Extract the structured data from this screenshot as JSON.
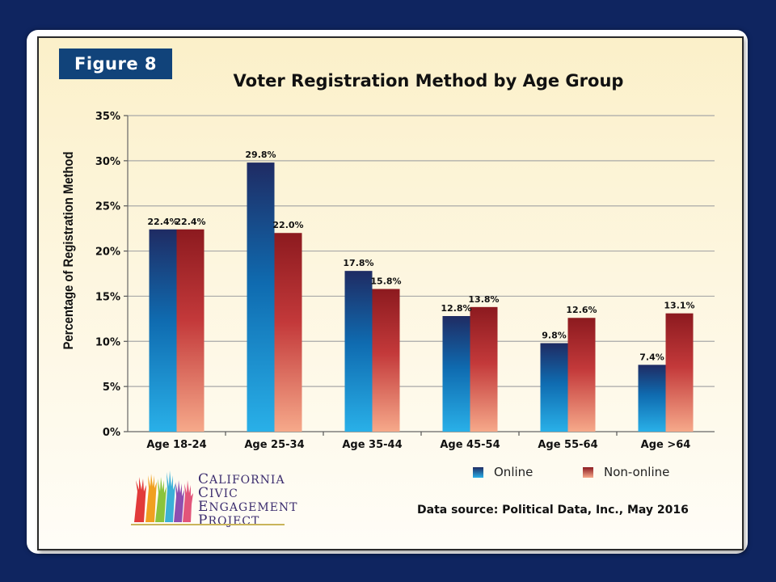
{
  "figure_label": "Figure 8",
  "data_source": "Data source: Political Data, Inc., May 2016",
  "logo": {
    "lines": [
      {
        "cap": "C",
        "rest": "ALIFORNIA"
      },
      {
        "cap": "C",
        "rest": "IVIC"
      },
      {
        "cap": "E",
        "rest": "NGAGEMENT"
      },
      {
        "cap": "P",
        "rest": "ROJECT"
      }
    ]
  },
  "colors": {
    "background": "#0f2560",
    "online_top": "#1f2b63",
    "online_mid": "#0f6bb0",
    "online_bottom": "#29b0e8",
    "nononline_top": "#8c1a1f",
    "nononline_mid": "#c3393a",
    "nononline_bottom": "#f6a98a"
  },
  "chart_data": {
    "type": "bar",
    "title": "Voter Registration Method by Age Group",
    "xlabel": "",
    "ylabel": "Percentage of Registration Method",
    "categories": [
      "Age 18-24",
      "Age 25-34",
      "Age 35-44",
      "Age 45-54",
      "Age 55-64",
      "Age >64"
    ],
    "series": [
      {
        "name": "Online",
        "values": [
          22.4,
          29.8,
          17.8,
          12.8,
          9.8,
          7.4
        ],
        "labels": [
          "22.4%",
          "29.8%",
          "17.8%",
          "12.8%",
          "9.8%",
          "7.4%"
        ]
      },
      {
        "name": "Non-online",
        "values": [
          22.4,
          22.0,
          15.8,
          13.8,
          12.6,
          13.1
        ],
        "labels": [
          "22.4%",
          "22.0%",
          "15.8%",
          "13.8%",
          "12.6%",
          "13.1%"
        ]
      }
    ],
    "ylim": [
      0,
      35
    ],
    "yticks": [
      0,
      5,
      10,
      15,
      20,
      25,
      30,
      35
    ],
    "ytick_labels": [
      "0%",
      "5%",
      "10%",
      "15%",
      "20%",
      "25%",
      "30%",
      "35%"
    ],
    "grid": true,
    "legend": "bottom-right"
  }
}
